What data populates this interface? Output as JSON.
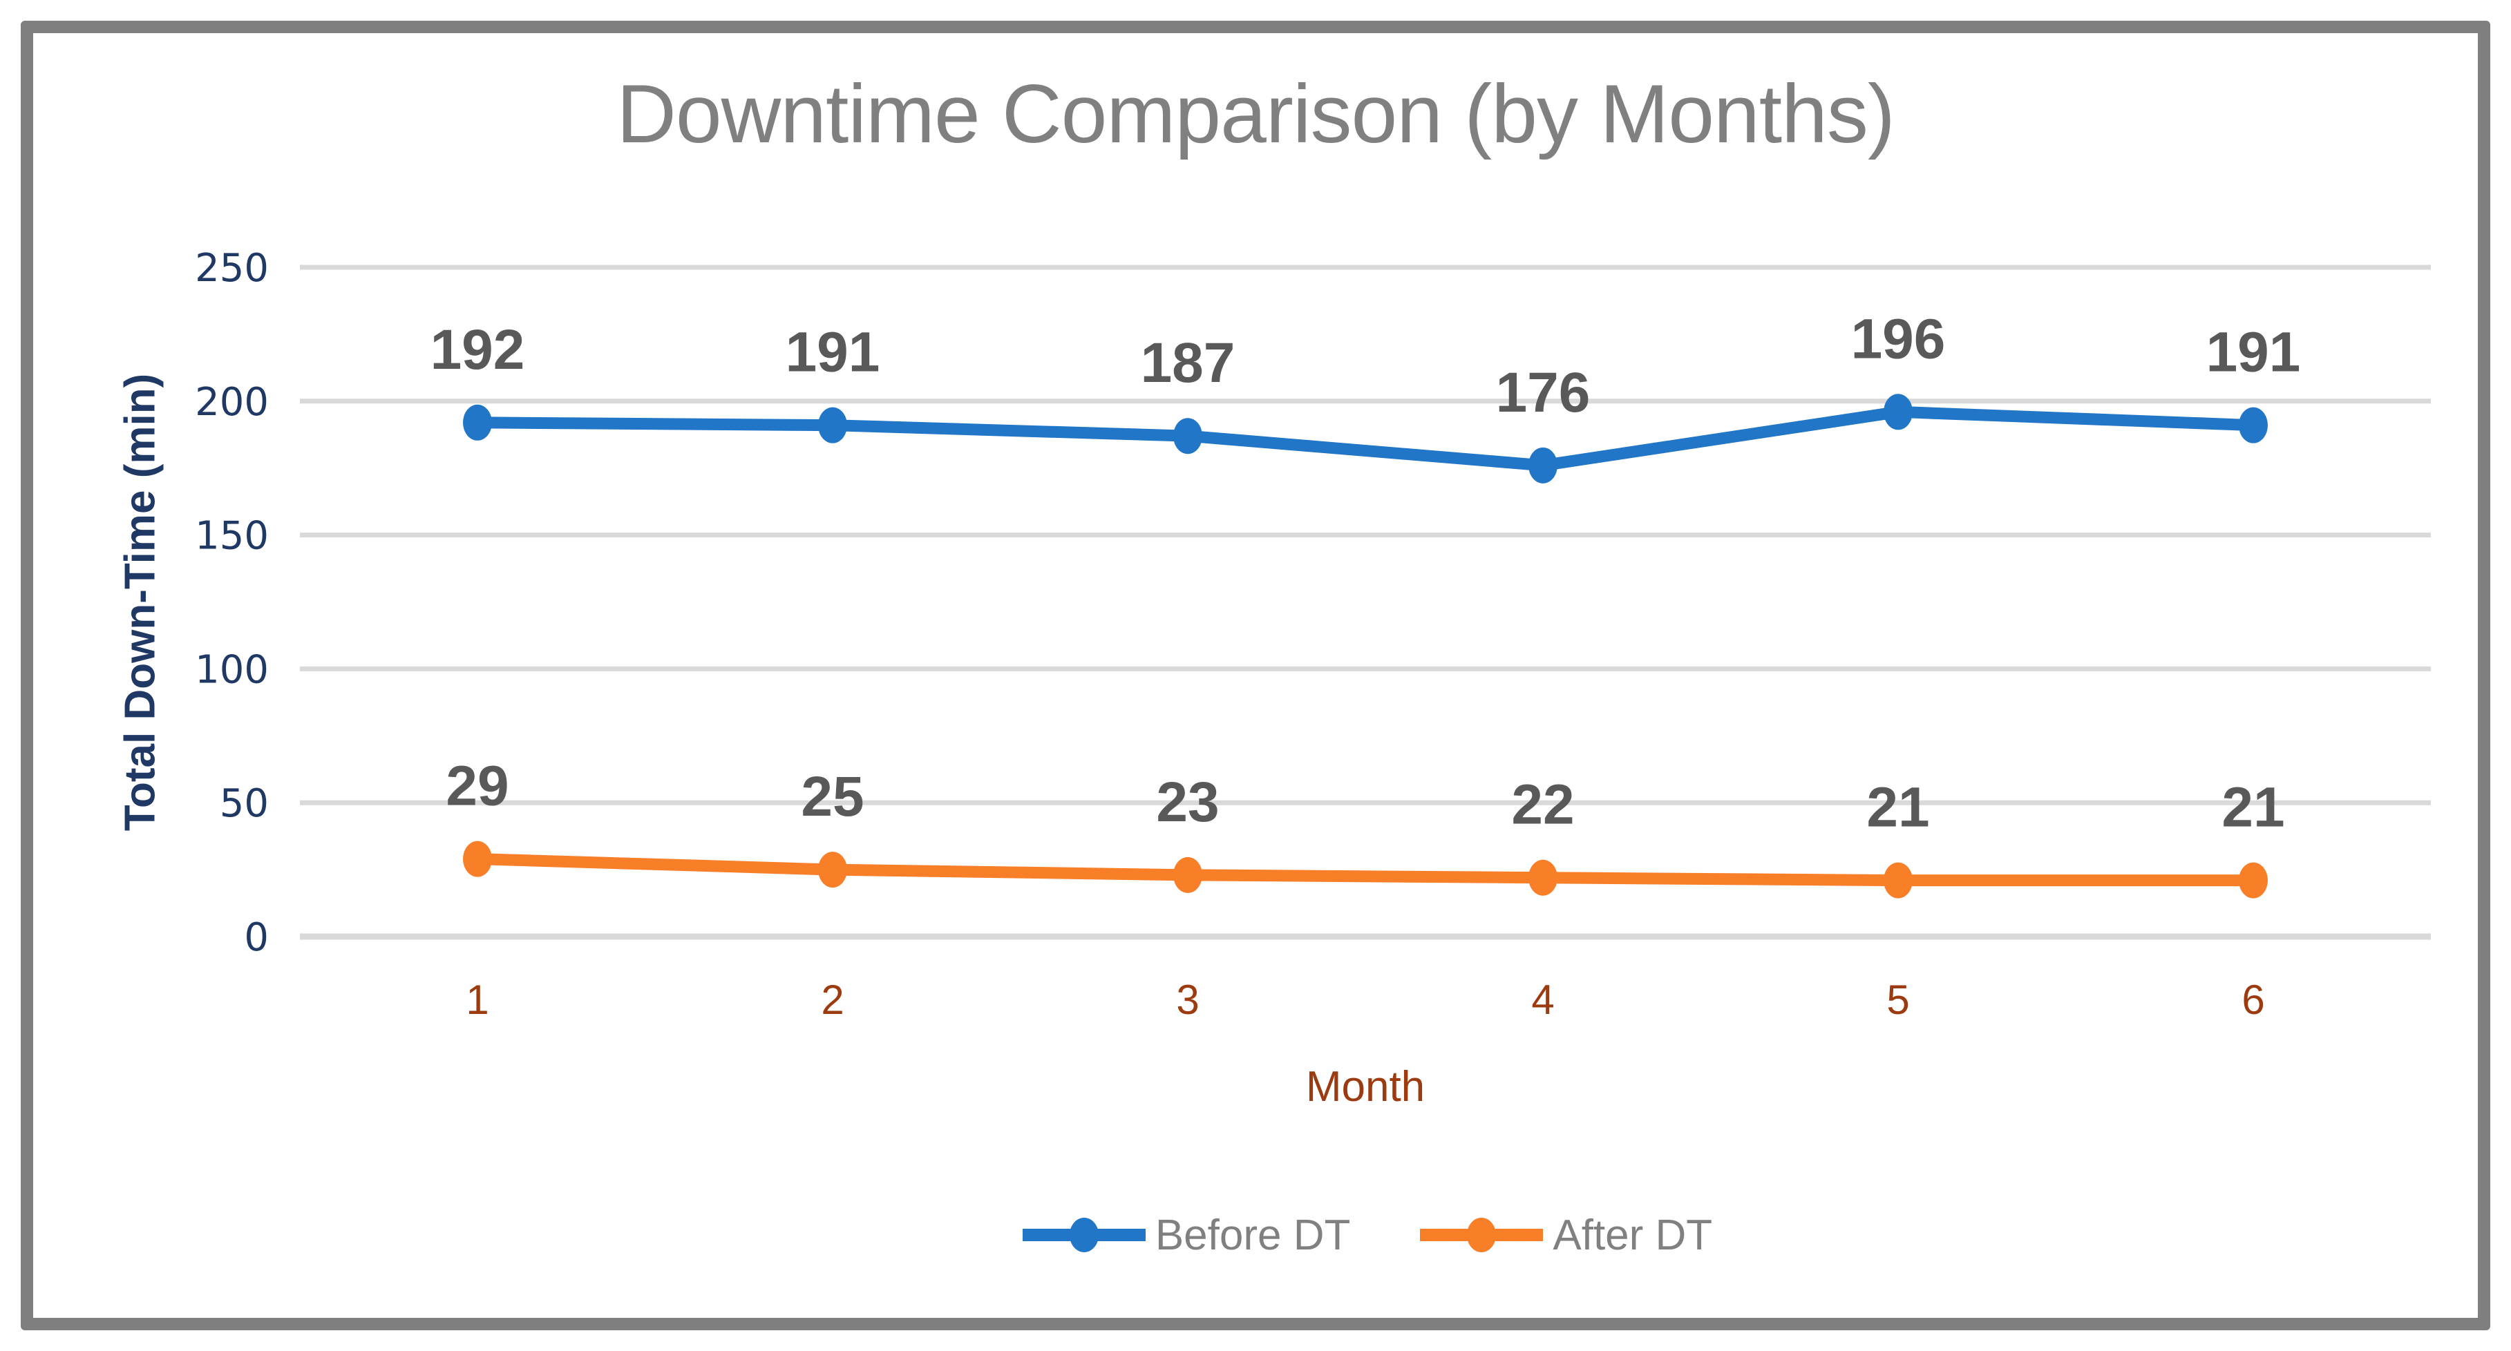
{
  "chart_data": {
    "type": "line",
    "title": "Downtime Comparison (by Months)",
    "xlabel": "Month",
    "ylabel": "Total Down-Time (min)",
    "categories": [
      "1",
      "2",
      "3",
      "4",
      "5",
      "6"
    ],
    "series": [
      {
        "name": "Before DT",
        "color": "#2176c7",
        "values": [
          192,
          191,
          187,
          176,
          196,
          191
        ]
      },
      {
        "name": "After DT",
        "color": "#f87e28",
        "values": [
          29,
          25,
          23,
          22,
          21,
          21
        ]
      }
    ],
    "ylim": [
      0,
      250
    ],
    "yticks": [
      0,
      50,
      100,
      150,
      200,
      250
    ],
    "grid": true,
    "data_labels": true,
    "legend_position": "bottom"
  },
  "colors": {
    "title_gray": "#808080",
    "legend_gray": "#808080",
    "data_label_gray": "#595959",
    "axis_navy": "#1f3864",
    "xtick_rust": "#9c3b10",
    "gridline": "#d9d9d9",
    "frame_gray": "#7f7f7f",
    "background": "#ffffff"
  }
}
